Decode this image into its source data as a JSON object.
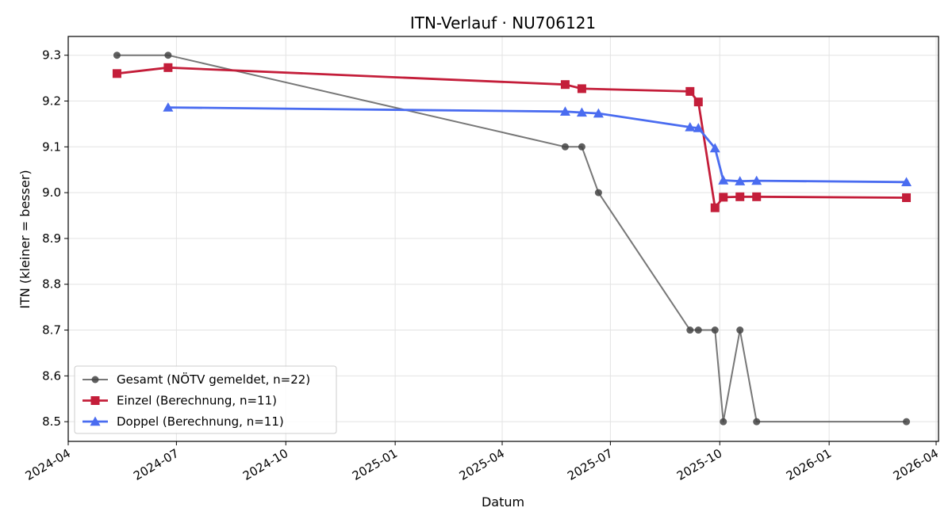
{
  "chart_data": {
    "type": "line",
    "title": "ITN-Verlauf · NU706121",
    "xlabel": "Datum",
    "ylabel": "ITN  (kleiner = besser)",
    "xlim": [
      "2024-04-01",
      "2026-04-03"
    ],
    "ylim": [
      8.457,
      9.341
    ],
    "x_ticks": [
      "2024-04",
      "2024-07",
      "2024-10",
      "2025-01",
      "2025-04",
      "2025-07",
      "2025-10",
      "2026-01",
      "2026-04"
    ],
    "y_ticks": [
      "8.5",
      "8.6",
      "8.7",
      "8.8",
      "8.9",
      "9.0",
      "9.1",
      "9.2",
      "9.3"
    ],
    "grid": true,
    "legend_position": "lower-left",
    "series": [
      {
        "name": "Gesamt (NÖTV gemeldet, n=22)",
        "color": "#555555",
        "marker": "circle",
        "points": [
          [
            "2024-05-12",
            9.3
          ],
          [
            "2024-06-24",
            9.3
          ],
          [
            "2025-05-24",
            9.1
          ],
          [
            "2025-06-07",
            9.1
          ],
          [
            "2025-06-21",
            9.0
          ],
          [
            "2025-09-06",
            8.7
          ],
          [
            "2025-09-13",
            8.7
          ],
          [
            "2025-09-27",
            8.7
          ],
          [
            "2025-10-04",
            8.5
          ],
          [
            "2025-10-18",
            8.7
          ],
          [
            "2025-11-01",
            8.5
          ],
          [
            "2026-03-07",
            8.5
          ]
        ]
      },
      {
        "name": "Einzel (Berechnung, n=11)",
        "color": "#c41e3a",
        "marker": "square",
        "points": [
          [
            "2024-05-12",
            9.26
          ],
          [
            "2024-06-24",
            9.273
          ],
          [
            "2025-05-24",
            9.236
          ],
          [
            "2025-06-07",
            9.227
          ],
          [
            "2025-09-06",
            9.221
          ],
          [
            "2025-09-13",
            9.198
          ],
          [
            "2025-09-27",
            8.967
          ],
          [
            "2025-10-04",
            8.99
          ],
          [
            "2025-10-18",
            8.991
          ],
          [
            "2025-11-01",
            8.991
          ],
          [
            "2026-03-07",
            8.989
          ]
        ]
      },
      {
        "name": "Doppel (Berechnung, n=11)",
        "color": "#4a6cf0",
        "marker": "triangle",
        "points": [
          [
            "2024-06-24",
            9.186
          ],
          [
            "2025-05-24",
            9.177
          ],
          [
            "2025-06-07",
            9.175
          ],
          [
            "2025-06-21",
            9.173
          ],
          [
            "2025-09-06",
            9.143
          ],
          [
            "2025-09-13",
            9.141
          ],
          [
            "2025-09-27",
            9.097
          ],
          [
            "2025-10-04",
            9.027
          ],
          [
            "2025-10-18",
            9.025
          ],
          [
            "2025-11-01",
            9.026
          ],
          [
            "2026-03-07",
            9.023
          ]
        ]
      }
    ]
  }
}
